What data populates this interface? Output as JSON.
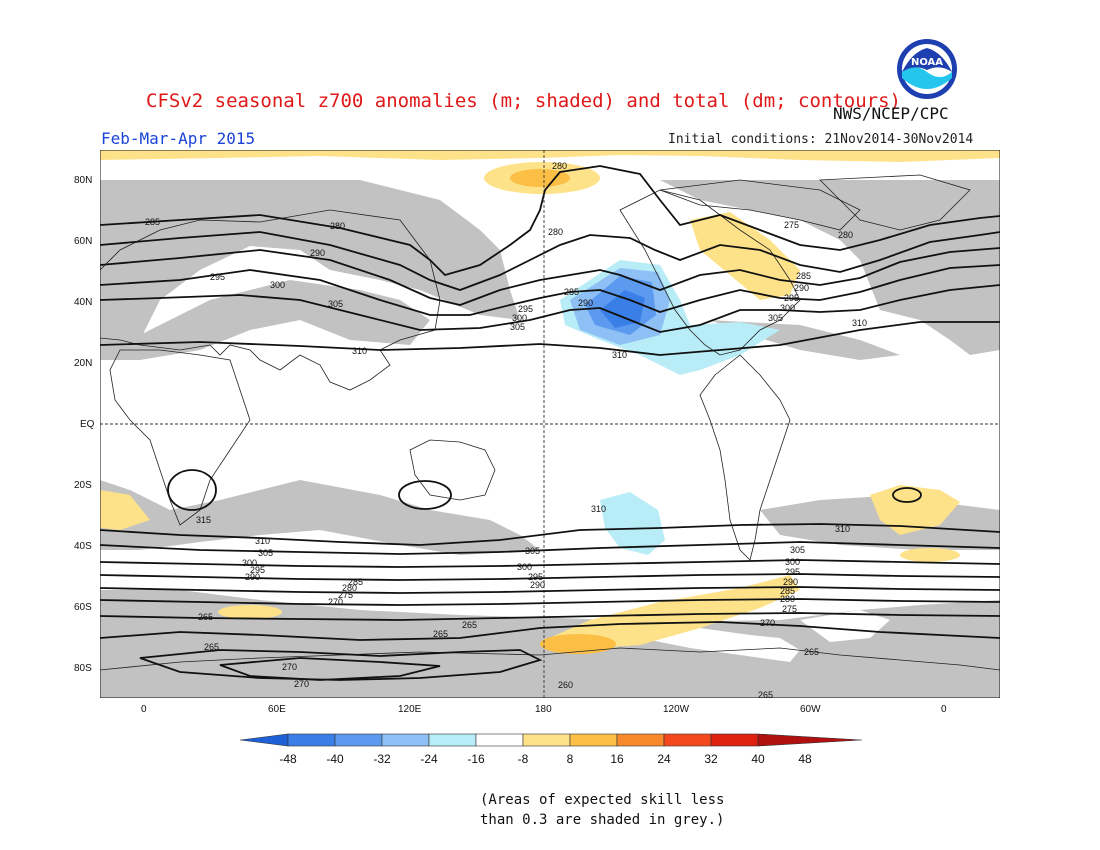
{
  "header": {
    "title": "CFSv2 seasonal z700 anomalies (m; shaded) and total (dm; contours)",
    "agency": "NWS/NCEP/CPC",
    "period": "Feb-Mar-Apr 2015",
    "initial_conditions": "Initial conditions: 21Nov2014-30Nov2014"
  },
  "logo": {
    "name": "NOAA",
    "text": "NOAA"
  },
  "axes": {
    "lat_labels": [
      "80N",
      "60N",
      "40N",
      "20N",
      "EQ",
      "20S",
      "40S",
      "60S",
      "80S"
    ],
    "lon_labels": [
      "0",
      "60E",
      "120E",
      "180",
      "120W",
      "60W",
      "0"
    ]
  },
  "colorbar": {
    "labels": [
      "-48",
      "-40",
      "-32",
      "-24",
      "-16",
      "-8",
      "8",
      "16",
      "24",
      "32",
      "40",
      "48"
    ],
    "colors": [
      "#1f5fd8",
      "#3a7ee8",
      "#5c9af0",
      "#8ec0f6",
      "#b8ecf6",
      "#ffffff",
      "#fde28a",
      "#fbbf45",
      "#f88a2c",
      "#f4481d",
      "#dd2010",
      "#b0100e"
    ]
  },
  "contour_labels": [
    "280",
    "285",
    "290",
    "295",
    "300",
    "305",
    "310",
    "315",
    "265",
    "270",
    "275",
    "260"
  ],
  "footnote": {
    "line1": "(Areas of expected skill less",
    "line2": "than 0.3 are shaded in grey.)"
  }
}
